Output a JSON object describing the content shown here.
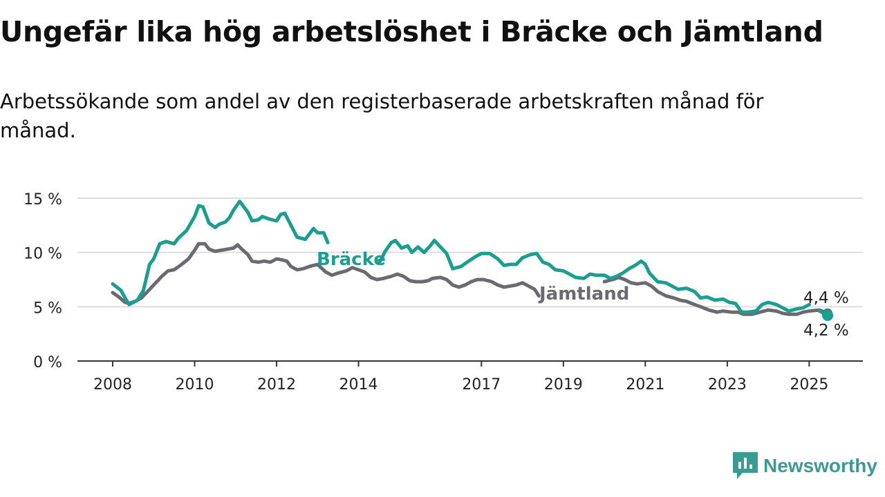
{
  "title": "Ungefär lika hög arbetslöshet i Bräcke och Jämtland",
  "subtitle": "Arbetssökande som andel av den registerbaserade arbetskraften månad för månad.",
  "brand": {
    "name": "Newsworthy",
    "color": "#3a9a94"
  },
  "colors": {
    "bracke": "#1a9e8f",
    "jamtland": "#6b6a70",
    "grid": "#dddddd",
    "axis": "#333333"
  },
  "chart_data": {
    "type": "line",
    "title": "Ungefär lika hög arbetslöshet i Bräcke och Jämtland",
    "xlabel": "",
    "ylabel": "",
    "x_ticks": [
      "2008",
      "2010",
      "2012",
      "2014",
      "2017",
      "2019",
      "2021",
      "2023",
      "2025"
    ],
    "y_ticks": [
      "0 %",
      "5 %",
      "10 %",
      "15 %"
    ],
    "xlim": [
      2008.0,
      2026.3
    ],
    "ylim": [
      0,
      15.5
    ],
    "grid": true,
    "legend": "inline labels",
    "series": [
      {
        "name": "Bräcke",
        "color": "#1a9e8f",
        "end_label": "4,2 %",
        "points": [
          [
            2008.0,
            7.1
          ],
          [
            2008.2,
            6.5
          ],
          [
            2008.35,
            5.5
          ],
          [
            2008.4,
            5.2
          ],
          [
            2008.6,
            5.6
          ],
          [
            2008.75,
            6.5
          ],
          [
            2008.9,
            8.9
          ],
          [
            2009.0,
            9.4
          ],
          [
            2009.15,
            10.8
          ],
          [
            2009.3,
            11.0
          ],
          [
            2009.5,
            10.8
          ],
          [
            2009.6,
            11.3
          ],
          [
            2009.8,
            12.0
          ],
          [
            2010.0,
            13.3
          ],
          [
            2010.1,
            14.3
          ],
          [
            2010.2,
            14.2
          ],
          [
            2010.35,
            12.7
          ],
          [
            2010.5,
            12.3
          ],
          [
            2010.6,
            12.6
          ],
          [
            2010.75,
            12.8
          ],
          [
            2010.85,
            13.2
          ],
          [
            2010.95,
            13.9
          ],
          [
            2011.1,
            14.7
          ],
          [
            2011.3,
            13.7
          ],
          [
            2011.4,
            12.9
          ],
          [
            2011.55,
            13.0
          ],
          [
            2011.65,
            13.3
          ],
          [
            2011.8,
            13.1
          ],
          [
            2011.9,
            13.0
          ],
          [
            2012.0,
            12.9
          ],
          [
            2012.1,
            13.5
          ],
          [
            2012.2,
            13.6
          ],
          [
            2012.35,
            12.5
          ],
          [
            2012.5,
            11.4
          ],
          [
            2012.7,
            11.2
          ],
          [
            2012.9,
            12.2
          ],
          [
            2013.0,
            11.8
          ],
          [
            2013.15,
            11.8
          ],
          [
            2013.25,
            10.9
          ]
        ],
        "points_segment2": [
          [
            2014.5,
            9.0
          ],
          [
            2014.65,
            10.1
          ],
          [
            2014.8,
            10.9
          ],
          [
            2014.9,
            11.1
          ],
          [
            2015.05,
            10.4
          ],
          [
            2015.2,
            10.6
          ],
          [
            2015.3,
            10.0
          ],
          [
            2015.45,
            10.5
          ],
          [
            2015.6,
            10.0
          ],
          [
            2015.75,
            10.6
          ],
          [
            2015.85,
            11.1
          ],
          [
            2016.0,
            10.5
          ],
          [
            2016.15,
            9.9
          ],
          [
            2016.3,
            8.5
          ],
          [
            2016.5,
            8.7
          ],
          [
            2016.65,
            9.1
          ],
          [
            2016.85,
            9.6
          ],
          [
            2017.0,
            9.9
          ],
          [
            2017.2,
            9.9
          ],
          [
            2017.4,
            9.4
          ],
          [
            2017.55,
            8.8
          ],
          [
            2017.7,
            8.9
          ],
          [
            2017.85,
            8.9
          ],
          [
            2018.0,
            9.5
          ],
          [
            2018.2,
            9.8
          ],
          [
            2018.35,
            9.9
          ],
          [
            2018.5,
            9.1
          ],
          [
            2018.65,
            8.9
          ],
          [
            2018.8,
            8.4
          ],
          [
            2019.0,
            8.3
          ],
          [
            2019.15,
            8.0
          ],
          [
            2019.3,
            7.7
          ],
          [
            2019.5,
            7.6
          ],
          [
            2019.65,
            8.0
          ],
          [
            2019.8,
            7.9
          ],
          [
            2020.0,
            7.9
          ],
          [
            2020.15,
            7.6
          ],
          [
            2020.3,
            7.8
          ],
          [
            2020.45,
            8.1
          ],
          [
            2020.6,
            8.5
          ],
          [
            2020.75,
            8.8
          ],
          [
            2020.9,
            9.2
          ],
          [
            2021.0,
            8.9
          ],
          [
            2021.1,
            8.1
          ],
          [
            2021.3,
            7.3
          ],
          [
            2021.5,
            7.2
          ],
          [
            2021.65,
            6.9
          ],
          [
            2021.8,
            6.6
          ],
          [
            2022.0,
            6.7
          ],
          [
            2022.2,
            6.4
          ],
          [
            2022.35,
            5.8
          ],
          [
            2022.5,
            5.9
          ],
          [
            2022.7,
            5.6
          ],
          [
            2022.9,
            5.7
          ],
          [
            2023.05,
            5.4
          ],
          [
            2023.2,
            5.3
          ],
          [
            2023.35,
            4.5
          ],
          [
            2023.5,
            4.5
          ],
          [
            2023.7,
            4.6
          ],
          [
            2023.85,
            5.2
          ],
          [
            2024.0,
            5.4
          ],
          [
            2024.2,
            5.2
          ],
          [
            2024.35,
            4.9
          ],
          [
            2024.5,
            4.6
          ],
          [
            2024.7,
            4.8
          ],
          [
            2024.85,
            4.9
          ],
          [
            2025.0,
            5.2
          ]
        ],
        "points_segment3": [
          [
            2025.25,
            4.6
          ],
          [
            2025.45,
            4.2
          ]
        ]
      },
      {
        "name": "Jämtland",
        "color": "#6b6a70",
        "end_label": "4,4 %",
        "points": [
          [
            2008.0,
            6.3
          ],
          [
            2008.15,
            5.9
          ],
          [
            2008.3,
            5.4
          ],
          [
            2008.4,
            5.3
          ],
          [
            2008.55,
            5.5
          ],
          [
            2008.7,
            5.8
          ],
          [
            2008.85,
            6.4
          ],
          [
            2009.0,
            7.0
          ],
          [
            2009.2,
            7.8
          ],
          [
            2009.35,
            8.3
          ],
          [
            2009.5,
            8.4
          ],
          [
            2009.65,
            8.8
          ],
          [
            2009.85,
            9.4
          ],
          [
            2010.0,
            10.2
          ],
          [
            2010.1,
            10.8
          ],
          [
            2010.25,
            10.8
          ],
          [
            2010.35,
            10.3
          ],
          [
            2010.5,
            10.1
          ],
          [
            2010.65,
            10.2
          ],
          [
            2010.8,
            10.3
          ],
          [
            2010.95,
            10.4
          ],
          [
            2011.05,
            10.7
          ],
          [
            2011.15,
            10.3
          ],
          [
            2011.3,
            9.8
          ],
          [
            2011.4,
            9.2
          ],
          [
            2011.55,
            9.1
          ],
          [
            2011.7,
            9.2
          ],
          [
            2011.85,
            9.1
          ],
          [
            2012.0,
            9.4
          ],
          [
            2012.15,
            9.3
          ],
          [
            2012.25,
            9.2
          ],
          [
            2012.35,
            8.7
          ],
          [
            2012.5,
            8.4
          ],
          [
            2012.65,
            8.5
          ],
          [
            2012.8,
            8.7
          ],
          [
            2013.0,
            8.9
          ],
          [
            2013.2,
            8.2
          ],
          [
            2013.35,
            7.9
          ],
          [
            2013.5,
            8.1
          ],
          [
            2013.7,
            8.3
          ],
          [
            2013.85,
            8.6
          ],
          [
            2014.0,
            8.4
          ],
          [
            2014.15,
            8.2
          ],
          [
            2014.3,
            7.7
          ],
          [
            2014.45,
            7.5
          ],
          [
            2014.6,
            7.6
          ],
          [
            2014.8,
            7.8
          ],
          [
            2014.95,
            8.0
          ],
          [
            2015.1,
            7.8
          ],
          [
            2015.25,
            7.4
          ],
          [
            2015.4,
            7.3
          ],
          [
            2015.55,
            7.3
          ],
          [
            2015.7,
            7.4
          ],
          [
            2015.8,
            7.6
          ],
          [
            2016.0,
            7.7
          ],
          [
            2016.15,
            7.5
          ],
          [
            2016.3,
            7.0
          ],
          [
            2016.45,
            6.8
          ],
          [
            2016.6,
            7.0
          ],
          [
            2016.75,
            7.3
          ],
          [
            2016.9,
            7.5
          ],
          [
            2017.05,
            7.5
          ],
          [
            2017.25,
            7.3
          ],
          [
            2017.4,
            7.0
          ],
          [
            2017.55,
            6.8
          ],
          [
            2017.7,
            6.9
          ],
          [
            2017.85,
            7.0
          ],
          [
            2018.0,
            7.2
          ],
          [
            2018.15,
            6.9
          ],
          [
            2018.3,
            6.6
          ],
          [
            2018.4,
            6.0
          ]
        ],
        "points_segment2": [
          [
            2020.0,
            7.3
          ],
          [
            2020.2,
            7.5
          ],
          [
            2020.35,
            7.7
          ],
          [
            2020.5,
            7.5
          ],
          [
            2020.65,
            7.2
          ],
          [
            2020.8,
            7.1
          ],
          [
            2021.0,
            7.2
          ],
          [
            2021.15,
            6.9
          ],
          [
            2021.3,
            6.4
          ],
          [
            2021.5,
            6.0
          ],
          [
            2021.7,
            5.8
          ],
          [
            2021.85,
            5.6
          ],
          [
            2022.0,
            5.5
          ],
          [
            2022.2,
            5.2
          ],
          [
            2022.35,
            5.0
          ],
          [
            2022.55,
            4.7
          ],
          [
            2022.75,
            4.5
          ],
          [
            2022.9,
            4.6
          ],
          [
            2023.1,
            4.5
          ],
          [
            2023.25,
            4.5
          ],
          [
            2023.4,
            4.3
          ],
          [
            2023.6,
            4.3
          ],
          [
            2023.8,
            4.5
          ],
          [
            2024.0,
            4.7
          ],
          [
            2024.2,
            4.6
          ],
          [
            2024.35,
            4.4
          ],
          [
            2024.5,
            4.3
          ],
          [
            2024.7,
            4.3
          ],
          [
            2024.85,
            4.5
          ],
          [
            2025.0,
            4.6
          ],
          [
            2025.25,
            4.7
          ],
          [
            2025.45,
            4.4
          ]
        ]
      }
    ],
    "annotations": [
      "Bräcke",
      "Jämtland",
      "4,4 %",
      "4,2 %"
    ]
  }
}
